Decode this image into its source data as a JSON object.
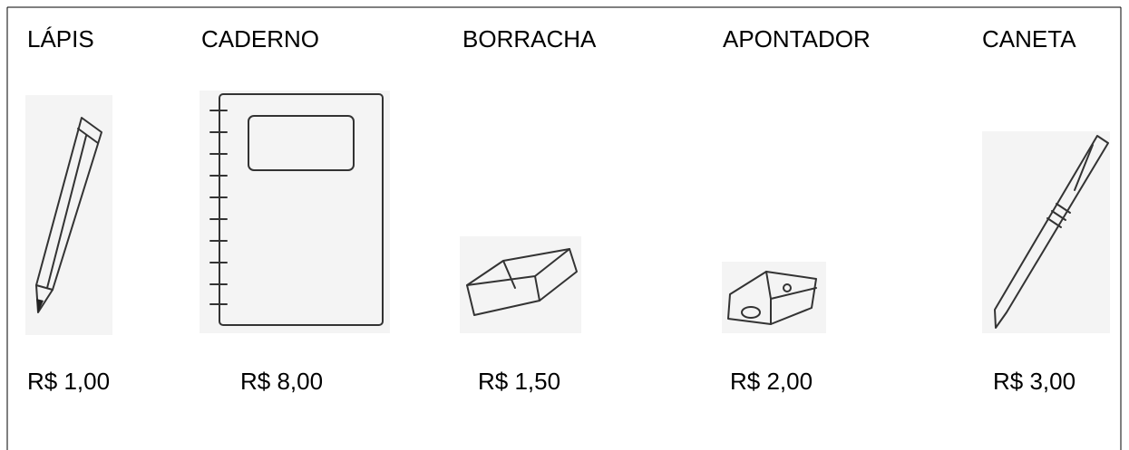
{
  "items": [
    {
      "name": "LÁPIS",
      "price": "R$ 1,00"
    },
    {
      "name": "CADERNO",
      "price": "R$ 8,00"
    },
    {
      "name": "BORRACHA",
      "price": "R$ 1,50"
    },
    {
      "name": "APONTADOR",
      "price": "R$ 2,00"
    },
    {
      "name": "CANETA",
      "price": "R$ 3,00"
    }
  ]
}
